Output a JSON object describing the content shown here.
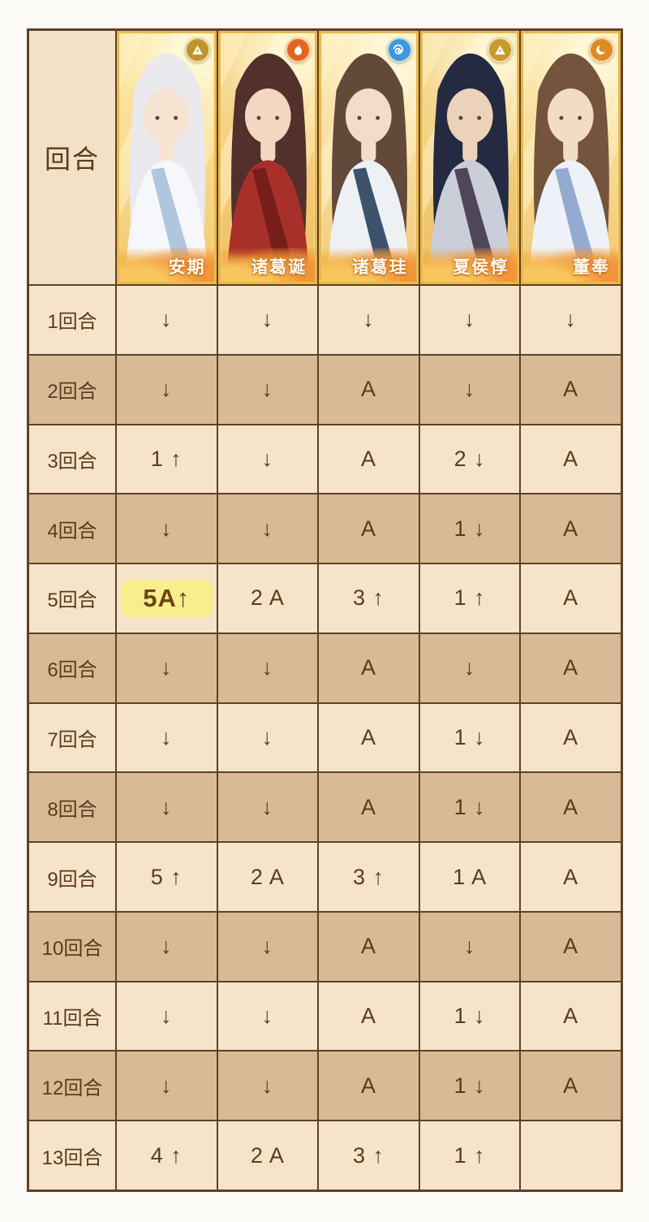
{
  "page": {
    "background": "#fbfaf7",
    "table_border_color": "#5e4126",
    "row_shade_light": "#f5e4ca",
    "row_shade_dark": "#d9ba96",
    "text_color": "#5d3a1c",
    "highlight_color": "#f8ee8d"
  },
  "table": {
    "corner_label": "回合",
    "characters": [
      {
        "name": "安期",
        "element_icon": "mountain-icon",
        "element_color": "#bf932c",
        "art": {
          "hair": "#e9e9ee",
          "skin": "#f7e3d2",
          "robe": "#f5f7fa",
          "accent": "#a8c0dc",
          "bg_top": "#fdeeb4",
          "bg_bottom": "#f2c96e"
        }
      },
      {
        "name": "诸葛诞",
        "element_icon": "fire-icon",
        "element_color": "#e2661f",
        "art": {
          "hair": "#53302c",
          "skin": "#f2d8c2",
          "robe": "#a8302a",
          "accent": "#6f1d18",
          "bg_top": "#f8dfa0",
          "bg_bottom": "#eebb5c"
        }
      },
      {
        "name": "诸葛珪",
        "element_icon": "water-icon",
        "element_color": "#3f97dd",
        "art": {
          "hair": "#63493a",
          "skin": "#f4ddc8",
          "robe": "#eef1f4",
          "accent": "#29405e",
          "bg_top": "#fcf0c8",
          "bg_bottom": "#f0cc7c"
        }
      },
      {
        "name": "夏侯惇",
        "element_icon": "mountain-icon",
        "element_color": "#c79a2e",
        "art": {
          "hair": "#232a42",
          "skin": "#edd2ba",
          "robe": "#c9ced8",
          "accent": "#41374e",
          "bg_top": "#f6dfa2",
          "bg_bottom": "#ecba5e"
        }
      },
      {
        "name": "董奉",
        "element_icon": "moon-icon",
        "element_color": "#e08a26",
        "art": {
          "hair": "#74543c",
          "skin": "#f3dcc6",
          "robe": "#eef2f8",
          "accent": "#8aa2cc",
          "bg_top": "#fbeec0",
          "bg_bottom": "#f0c870"
        }
      }
    ],
    "rows": [
      {
        "label": "1回合",
        "cells": [
          "↓",
          "↓",
          "↓",
          "↓",
          "↓"
        ]
      },
      {
        "label": "2回合",
        "cells": [
          "↓",
          "↓",
          "A",
          "↓",
          "A"
        ]
      },
      {
        "label": "3回合",
        "cells": [
          "1 ↑",
          "↓",
          "A",
          "2 ↓",
          "A"
        ]
      },
      {
        "label": "4回合",
        "cells": [
          "↓",
          "↓",
          "A",
          "1 ↓",
          "A"
        ]
      },
      {
        "label": "5回合",
        "cells": [
          "5A↑",
          "2 A",
          "3 ↑",
          "1 ↑",
          "A"
        ]
      },
      {
        "label": "6回合",
        "cells": [
          "↓",
          "↓",
          "A",
          "↓",
          "A"
        ]
      },
      {
        "label": "7回合",
        "cells": [
          "↓",
          "↓",
          "A",
          "1 ↓",
          "A"
        ]
      },
      {
        "label": "8回合",
        "cells": [
          "↓",
          "↓",
          "A",
          "1 ↓",
          "A"
        ]
      },
      {
        "label": "9回合",
        "cells": [
          "5 ↑",
          "2 A",
          "3 ↑",
          "1 A",
          "A"
        ]
      },
      {
        "label": "10回合",
        "cells": [
          "↓",
          "↓",
          "A",
          "↓",
          "A"
        ]
      },
      {
        "label": "11回合",
        "cells": [
          "↓",
          "↓",
          "A",
          "1 ↓",
          "A"
        ]
      },
      {
        "label": "12回合",
        "cells": [
          "↓",
          "↓",
          "A",
          "1 ↓",
          "A"
        ]
      },
      {
        "label": "13回合",
        "cells": [
          "4 ↑",
          "2 A",
          "3 ↑",
          "1 ↑",
          ""
        ]
      }
    ],
    "highlight": {
      "row_index": 4,
      "col_index": 0
    }
  }
}
